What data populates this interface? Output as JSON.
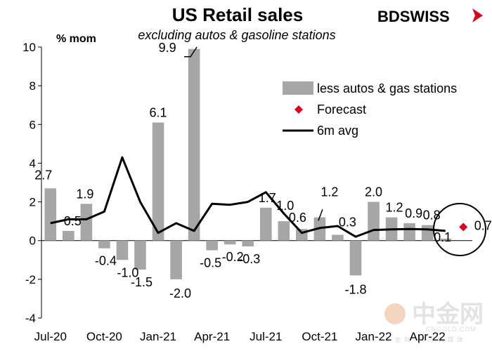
{
  "header": {
    "title": "US Retail sales",
    "subtitle": "excluding autos & gasoline stations",
    "unit": "% mom",
    "brand": "BDSWISS",
    "brand_accent": "#e2001a"
  },
  "watermark": {
    "main": "中金网",
    "sub": "CNGOLD.COM",
    "sub2": "中 金 网 · 财 经 新 媒 体"
  },
  "chart_data": {
    "type": "bar",
    "title": "US Retail sales",
    "subtitle": "excluding autos & gasoline stations",
    "ylabel": "% mom",
    "ylim": [
      -4,
      10
    ],
    "yticks": [
      -4,
      -2,
      0,
      2,
      4,
      6,
      8,
      10
    ],
    "grid": false,
    "legend_position": "right",
    "x_tick_labels": [
      "Jul-20",
      "Oct-20",
      "Jan-21",
      "Apr-21",
      "Jul-21",
      "Oct-21",
      "Jan-22",
      "Apr-22"
    ],
    "x_tick_index": [
      0,
      3,
      6,
      9,
      12,
      15,
      18,
      21
    ],
    "categories": [
      "Jul-20",
      "Aug-20",
      "Sep-20",
      "Oct-20",
      "Nov-20",
      "Dec-20",
      "Jan-21",
      "Feb-21",
      "Mar-21",
      "Apr-21",
      "May-21",
      "Jun-21",
      "Jul-21",
      "Aug-21",
      "Sep-21",
      "Oct-21",
      "Nov-21",
      "Dec-21",
      "Jan-22",
      "Feb-22",
      "Mar-22",
      "Apr-22",
      "May-22"
    ],
    "series": [
      {
        "name": "less autos & gas stations",
        "kind": "bar",
        "color": "#a6a6a6",
        "values": [
          2.7,
          0.5,
          1.9,
          -0.4,
          -1.0,
          -1.5,
          6.1,
          -2.0,
          9.9,
          -0.5,
          -0.2,
          -0.3,
          1.7,
          1.0,
          0.6,
          1.2,
          0.3,
          -1.8,
          2.0,
          1.2,
          0.9,
          0.8,
          0.1
        ]
      },
      {
        "name": "Forecast",
        "kind": "marker",
        "color": "#e2001a",
        "x_index": 23,
        "value": 0.7
      },
      {
        "name": "6m avg",
        "kind": "line",
        "color": "#000000",
        "values": [
          0.9,
          1.1,
          1.1,
          1.5,
          4.3,
          2.0,
          0.4,
          0.9,
          0.5,
          1.9,
          1.85,
          2.0,
          2.5,
          1.4,
          0.4,
          0.65,
          0.75,
          0.2,
          0.55,
          0.58,
          0.6,
          0.58,
          0.5
        ]
      }
    ],
    "data_labels": [
      {
        "i": 0,
        "text": "2.7"
      },
      {
        "i": 1,
        "text": "0.5"
      },
      {
        "i": 2,
        "text": "1.9"
      },
      {
        "i": 3,
        "text": "-0.4"
      },
      {
        "i": 4,
        "text": "-1.0"
      },
      {
        "i": 5,
        "text": "-1.5"
      },
      {
        "i": 6,
        "text": "6.1"
      },
      {
        "i": 7,
        "text": "-2.0"
      },
      {
        "i": 8,
        "text": "9.9"
      },
      {
        "i": 9,
        "text": "-0.5"
      },
      {
        "i": 10,
        "text": "-0.2"
      },
      {
        "i": 11,
        "text": "-0.3"
      },
      {
        "i": 12,
        "text": "1.7"
      },
      {
        "i": 13,
        "text": "1.0"
      },
      {
        "i": 14,
        "text": "0.6"
      },
      {
        "i": 15,
        "text": "1.2"
      },
      {
        "i": 16,
        "text": "0.3"
      },
      {
        "i": 17,
        "text": "-1.8"
      },
      {
        "i": 18,
        "text": "2.0"
      },
      {
        "i": 19,
        "text": "1.2"
      },
      {
        "i": 20,
        "text": "0.9"
      },
      {
        "i": 21,
        "text": "0.8"
      },
      {
        "i": 22,
        "text": "0.1"
      },
      {
        "i": 23,
        "text": "0.7"
      }
    ]
  }
}
